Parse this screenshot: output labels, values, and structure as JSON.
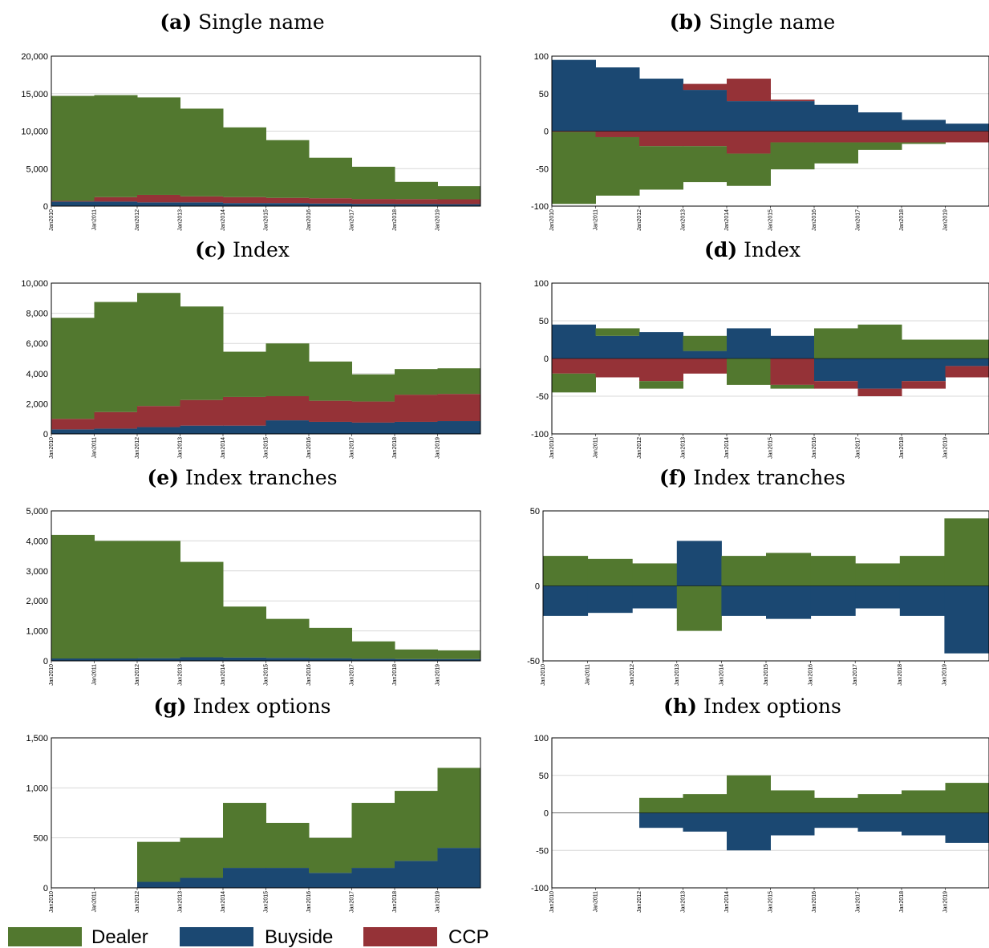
{
  "figure": {
    "legend": [
      {
        "name": "Dealer",
        "color": "#52782f"
      },
      {
        "name": "Buyside",
        "color": "#1b4872"
      },
      {
        "name": "CCP",
        "color": "#953237"
      }
    ]
  },
  "chart_data": [
    {
      "id": "a",
      "label": "(a)",
      "title": "Single name",
      "type": "area",
      "stacking": "stacked",
      "x": [
        "Jan2010",
        "Jan2011",
        "Jan2012",
        "Jan2013",
        "Jan2014",
        "Jan2015",
        "Jan2016",
        "Jan2017",
        "Jan2018",
        "Jan2019"
      ],
      "ylim": [
        0,
        20000
      ],
      "yticks": [
        0,
        5000,
        10000,
        15000,
        20000
      ],
      "yticklabels": [
        "0",
        "5,000",
        "10,000",
        "15,000",
        "20,000"
      ],
      "series": [
        {
          "name": "Buyside",
          "values": [
            600,
            600,
            500,
            500,
            400,
            400,
            350,
            300,
            280,
            260
          ]
        },
        {
          "name": "CCP",
          "values": [
            100,
            600,
            1000,
            800,
            800,
            700,
            700,
            650,
            650,
            650
          ]
        },
        {
          "name": "Dealer",
          "values": [
            14000,
            13600,
            13000,
            11700,
            9300,
            7700,
            5400,
            4300,
            2300,
            1750
          ]
        }
      ]
    },
    {
      "id": "b",
      "label": "(b)",
      "title": "Single name",
      "type": "area",
      "stacking": "diverging",
      "x": [
        "Jan2010",
        "Jan2011",
        "Jan2012",
        "Jan2013",
        "Jan2014",
        "Jan2015",
        "Jan2016",
        "Jan2017",
        "Jan2018",
        "Jan2019"
      ],
      "ylim": [
        -100,
        100
      ],
      "yticks": [
        -100,
        -50,
        0,
        50,
        100
      ],
      "yticklabels": [
        "-100",
        "-50",
        "0",
        "50",
        "100"
      ],
      "series": [
        {
          "name": "Buyside",
          "values": [
            95,
            85,
            70,
            55,
            40,
            40,
            35,
            25,
            15,
            10
          ]
        },
        {
          "name": "CCP",
          "values": [
            -1,
            -8,
            -20,
            -20,
            -30,
            -15,
            -15,
            -15,
            -15,
            -15
          ]
        },
        {
          "name": "CCP",
          "values": [
            0,
            0,
            0,
            8,
            30,
            2,
            0,
            0,
            0,
            0
          ]
        },
        {
          "name": "Dealer",
          "values": [
            -96,
            -78,
            -58,
            -48,
            -43,
            -36,
            -28,
            -10,
            -2,
            0
          ]
        }
      ]
    },
    {
      "id": "c",
      "label": "(c)",
      "title": "Index",
      "type": "area",
      "stacking": "stacked",
      "x": [
        "Jan2010",
        "Jan2011",
        "Jan2012",
        "Jan2013",
        "Jan2014",
        "Jan2015",
        "Jan2016",
        "Jan2017",
        "Jan2018",
        "Jan2019"
      ],
      "ylim": [
        0,
        10000
      ],
      "yticks": [
        0,
        2000,
        4000,
        6000,
        8000,
        10000
      ],
      "yticklabels": [
        "0",
        "2,000",
        "4,000",
        "6,000",
        "8,000",
        "10,000"
      ],
      "series": [
        {
          "name": "Buyside",
          "values": [
            300,
            350,
            450,
            550,
            550,
            900,
            800,
            750,
            800,
            850
          ]
        },
        {
          "name": "CCP",
          "values": [
            700,
            1100,
            1400,
            1700,
            1900,
            1600,
            1400,
            1400,
            1800,
            1800
          ]
        },
        {
          "name": "Dealer",
          "values": [
            6700,
            7300,
            7500,
            6200,
            3000,
            3500,
            2600,
            1800,
            1700,
            1700
          ]
        }
      ]
    },
    {
      "id": "d",
      "label": "(d)",
      "title": "Index",
      "type": "area",
      "stacking": "diverging",
      "x": [
        "Jan2010",
        "Jan2011",
        "Jan2012",
        "Jan2013",
        "Jan2014",
        "Jan2015",
        "Jan2016",
        "Jan2017",
        "Jan2018",
        "Jan2019"
      ],
      "ylim": [
        -100,
        100
      ],
      "yticks": [
        -100,
        -50,
        0,
        50,
        100
      ],
      "yticklabels": [
        "-100",
        "-50",
        "0",
        "50",
        "100"
      ],
      "series": [
        {
          "name": "Buyside",
          "values": [
            45,
            30,
            35,
            10,
            40,
            30,
            -30,
            -40,
            -30,
            -10
          ]
        },
        {
          "name": "CCP",
          "values": [
            -20,
            -25,
            -30,
            -20,
            0,
            -35,
            -10,
            -10,
            -10,
            -15
          ]
        },
        {
          "name": "Dealer",
          "values": [
            -25,
            10,
            -10,
            20,
            -35,
            -5,
            40,
            45,
            25,
            25
          ]
        }
      ]
    },
    {
      "id": "e",
      "label": "(e)",
      "title": "Index tranches",
      "type": "area",
      "stacking": "stacked",
      "x": [
        "Jan2010",
        "Jan2011",
        "Jan2012",
        "Jan2013",
        "Jan2014",
        "Jan2015",
        "Jan2016",
        "Jan2017",
        "Jan2018",
        "Jan2019"
      ],
      "ylim": [
        0,
        5000
      ],
      "yticks": [
        0,
        1000,
        2000,
        3000,
        4000,
        5000
      ],
      "yticklabels": [
        "0",
        "1,000",
        "2,000",
        "3,000",
        "4,000",
        "5,000"
      ],
      "series": [
        {
          "name": "Buyside",
          "values": [
            80,
            80,
            90,
            120,
            110,
            100,
            90,
            70,
            60,
            60
          ]
        },
        {
          "name": "Dealer",
          "values": [
            4120,
            3920,
            3910,
            3180,
            1700,
            1300,
            1010,
            580,
            320,
            290
          ]
        }
      ]
    },
    {
      "id": "f",
      "label": "(f)",
      "title": "Index tranches",
      "type": "area",
      "stacking": "diverging",
      "x": [
        "Jan2010",
        "Jan2011",
        "Jan2012",
        "Jan2013",
        "Jan2014",
        "Jan2015",
        "Jan2016",
        "Jan2017",
        "Jan2018",
        "Jan2019"
      ],
      "ylim": [
        -50,
        50
      ],
      "yticks": [
        -50,
        0,
        50
      ],
      "yticklabels": [
        "-50",
        "0",
        "50"
      ],
      "series": [
        {
          "name": "Dealer",
          "values": [
            20,
            18,
            15,
            -30,
            20,
            22,
            20,
            15,
            20,
            45
          ]
        },
        {
          "name": "Buyside",
          "values": [
            -20,
            -18,
            -15,
            30,
            -20,
            -22,
            -20,
            -15,
            -20,
            -45
          ]
        }
      ]
    },
    {
      "id": "g",
      "label": "(g)",
      "title": "Index options",
      "type": "area",
      "stacking": "stacked",
      "x": [
        "Jan2010",
        "Jan2011",
        "Jan2012",
        "Jan2013",
        "Jan2014",
        "Jan2015",
        "Jan2016",
        "Jan2017",
        "Jan2018",
        "Jan2019"
      ],
      "ylim": [
        0,
        1500
      ],
      "yticks": [
        0,
        500,
        1000,
        1500
      ],
      "yticklabels": [
        "0",
        "500",
        "1,000",
        "1,500"
      ],
      "series": [
        {
          "name": "Buyside",
          "values": [
            0,
            0,
            60,
            100,
            200,
            200,
            150,
            200,
            270,
            400
          ]
        },
        {
          "name": "Dealer",
          "values": [
            0,
            0,
            400,
            400,
            650,
            450,
            350,
            650,
            700,
            800
          ]
        }
      ]
    },
    {
      "id": "h",
      "label": "(h)",
      "title": "Index options",
      "type": "area",
      "stacking": "diverging",
      "x": [
        "Jan2010",
        "Jan2011",
        "Jan2012",
        "Jan2013",
        "Jan2014",
        "Jan2015",
        "Jan2016",
        "Jan2017",
        "Jan2018",
        "Jan2019"
      ],
      "ylim": [
        -100,
        100
      ],
      "yticks": [
        -100,
        -50,
        0,
        50,
        100
      ],
      "yticklabels": [
        "-100",
        "-50",
        "0",
        "50",
        "100"
      ],
      "series": [
        {
          "name": "Dealer",
          "values": [
            0,
            0,
            20,
            25,
            50,
            30,
            20,
            25,
            30,
            40
          ]
        },
        {
          "name": "Buyside",
          "values": [
            0,
            0,
            -20,
            -25,
            -50,
            -30,
            -20,
            -25,
            -30,
            -40
          ]
        }
      ]
    }
  ]
}
